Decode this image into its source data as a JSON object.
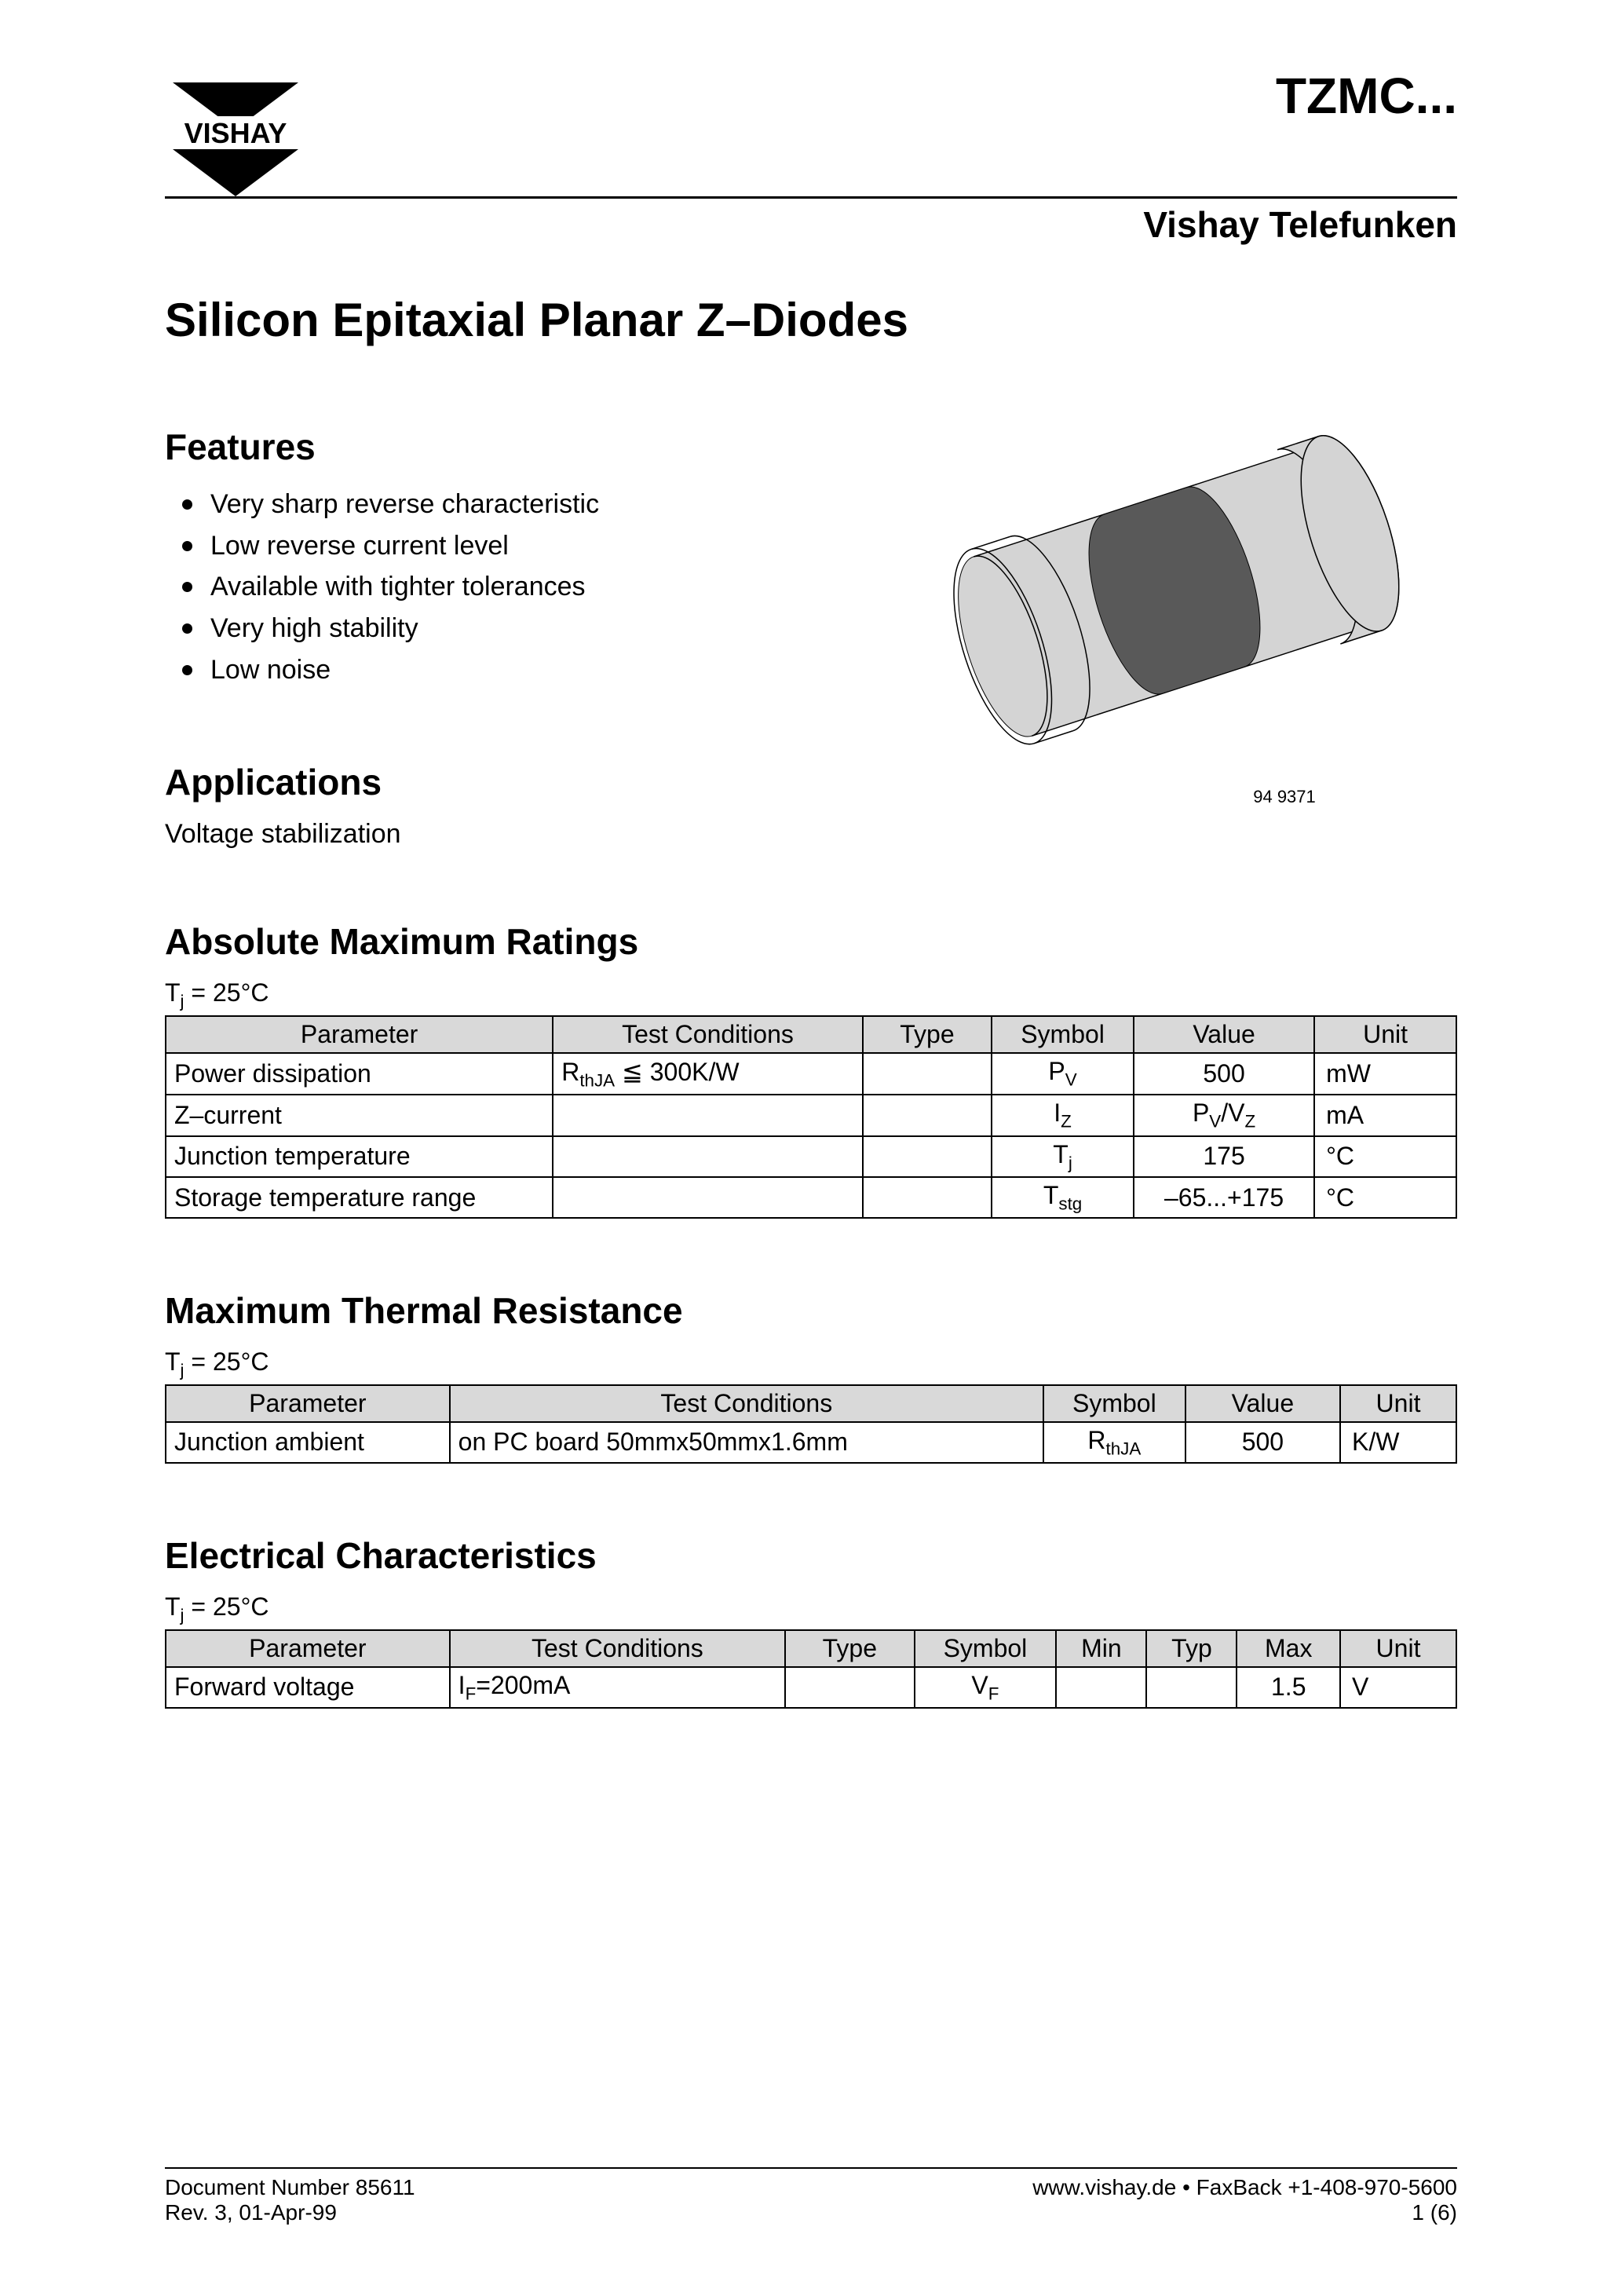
{
  "header": {
    "logo_text": "VISHAY",
    "product_code": "TZMC...",
    "sub_brand": "Vishay Telefunken"
  },
  "title": "Silicon Epitaxial Planar Z–Diodes",
  "features": {
    "heading": "Features",
    "items": [
      "Very sharp reverse characteristic",
      "Low reverse current level",
      "Available with tighter tolerances",
      "Very high stability",
      "Low noise"
    ]
  },
  "applications": {
    "heading": "Applications",
    "text": "Voltage stabilization"
  },
  "image_id": "94 9371",
  "amr": {
    "heading": "Absolute Maximum Ratings",
    "condition": "Tj = 25°C",
    "columns": [
      "Parameter",
      "Test Conditions",
      "Type",
      "Symbol",
      "Value",
      "Unit"
    ],
    "rows": [
      {
        "param": "Power dissipation",
        "test": "RthJA ≦ 300K/W",
        "type": "",
        "symbol": "PV",
        "value": "500",
        "unit": "mW"
      },
      {
        "param": "Z–current",
        "test": "",
        "type": "",
        "symbol": "IZ",
        "value": "PV/VZ",
        "unit": "mA"
      },
      {
        "param": "Junction temperature",
        "test": "",
        "type": "",
        "symbol": "Tj",
        "value": "175",
        "unit": "°C"
      },
      {
        "param": "Storage temperature range",
        "test": "",
        "type": "",
        "symbol": "Tstg",
        "value": "–65...+175",
        "unit": "°C"
      }
    ],
    "col_widths": [
      "30%",
      "24%",
      "10%",
      "11%",
      "14%",
      "11%"
    ]
  },
  "mtr": {
    "heading": "Maximum Thermal Resistance",
    "condition": "Tj = 25°C",
    "columns": [
      "Parameter",
      "Test Conditions",
      "Symbol",
      "Value",
      "Unit"
    ],
    "rows": [
      {
        "param": "Junction ambient",
        "test": "on PC board 50mmx50mmx1.6mm",
        "symbol": "RthJA",
        "value": "500",
        "unit": "K/W"
      }
    ],
    "col_widths": [
      "22%",
      "46%",
      "11%",
      "12%",
      "9%"
    ]
  },
  "ec": {
    "heading": "Electrical Characteristics",
    "condition": "Tj = 25°C",
    "columns": [
      "Parameter",
      "Test Conditions",
      "Type",
      "Symbol",
      "Min",
      "Typ",
      "Max",
      "Unit"
    ],
    "rows": [
      {
        "param": "Forward voltage",
        "test": "IF=200mA",
        "type": "",
        "symbol": "VF",
        "min": "",
        "typ": "",
        "max": "1.5",
        "unit": "V"
      }
    ],
    "col_widths": [
      "22%",
      "26%",
      "10%",
      "11%",
      "7%",
      "7%",
      "8%",
      "9%"
    ]
  },
  "footer": {
    "doc_number": "Document Number 85611",
    "rev": "Rev. 3, 01-Apr-99",
    "url": "www.vishay.de • FaxBack +1-408-970-5600",
    "page": "1 (6)"
  },
  "diagram": {
    "body_fill": "#d4d4d4",
    "band_fill": "#595959",
    "stroke": "#000000",
    "stroke_width": 1.5
  }
}
